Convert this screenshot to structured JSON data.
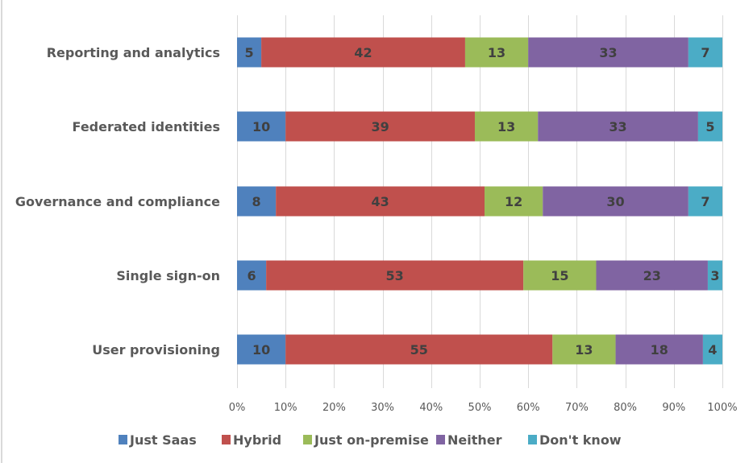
{
  "chart_data": {
    "type": "bar",
    "orientation": "horizontal",
    "stacked": "percent",
    "title": "",
    "xlabel": "",
    "ylabel": "",
    "xlim": [
      0,
      100
    ],
    "x_ticks": [
      "0%",
      "10%",
      "20%",
      "30%",
      "40%",
      "50%",
      "60%",
      "70%",
      "80%",
      "90%",
      "100%"
    ],
    "grid": true,
    "legend_position": "bottom",
    "categories": [
      "Reporting and analytics",
      "Federated identities",
      "Governance and compliance",
      "Single sign-on",
      "User provisioning"
    ],
    "series": [
      {
        "name": "Just Saas",
        "color": "#4f81bd",
        "values": [
          5,
          10,
          8,
          6,
          10
        ]
      },
      {
        "name": "Hybrid",
        "color": "#c0504d",
        "values": [
          42,
          39,
          43,
          53,
          55
        ]
      },
      {
        "name": "Just on-premise",
        "color": "#9bbb59",
        "values": [
          13,
          13,
          12,
          15,
          13
        ]
      },
      {
        "name": "Neither",
        "color": "#8064a2",
        "values": [
          33,
          33,
          30,
          23,
          18
        ]
      },
      {
        "name": "Don't know",
        "color": "#4bacc6",
        "values": [
          7,
          5,
          7,
          3,
          4
        ]
      }
    ],
    "data_labels": true
  }
}
